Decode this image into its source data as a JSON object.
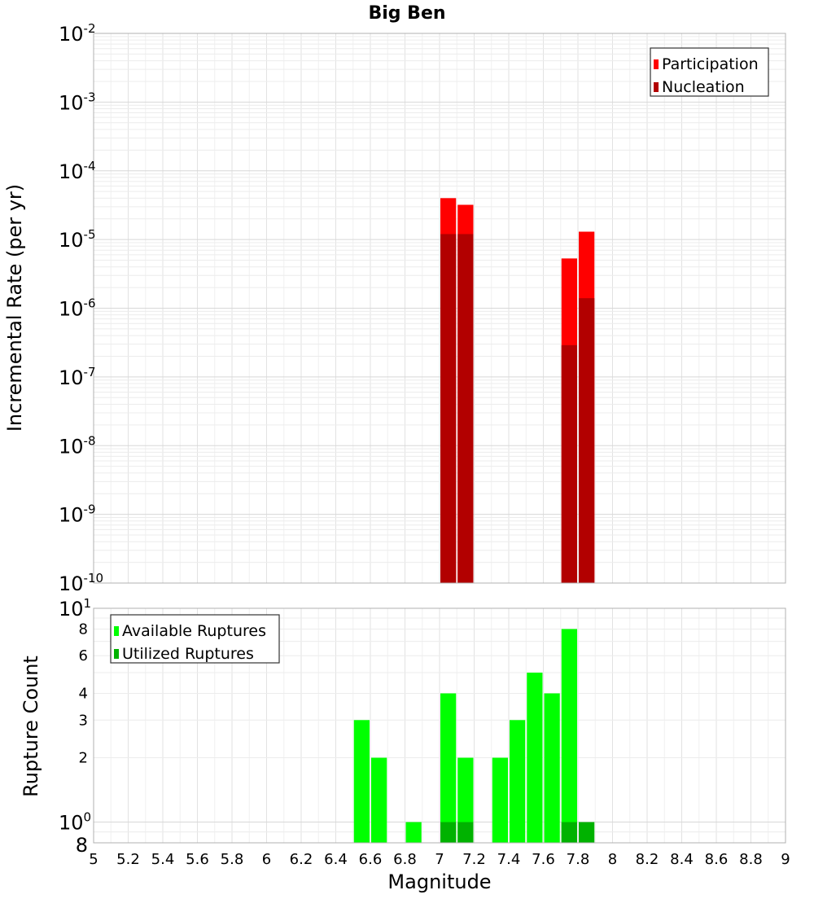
{
  "chart_data": [
    {
      "type": "bar",
      "panel": "rates",
      "title": "Big Ben",
      "ylabel": "Incremental Rate (per yr)",
      "xlim": [
        5,
        9
      ],
      "ylim": [
        1e-10,
        0.01
      ],
      "y_scale": "log",
      "grid": true,
      "legend_placement": "top-right",
      "y_ticks": [
        {
          "base": "10",
          "exp": "-2"
        },
        {
          "base": "10",
          "exp": "-3"
        },
        {
          "base": "10",
          "exp": "-4"
        },
        {
          "base": "10",
          "exp": "-5"
        },
        {
          "base": "10",
          "exp": "-6"
        },
        {
          "base": "10",
          "exp": "-7"
        },
        {
          "base": "10",
          "exp": "-8"
        },
        {
          "base": "10",
          "exp": "-9"
        },
        {
          "base": "10",
          "exp": "-10"
        }
      ],
      "series": [
        {
          "name": "Participation",
          "color": "#ff0000",
          "points": [
            {
              "x": 7.05,
              "y": 4e-05
            },
            {
              "x": 7.15,
              "y": 3.2e-05
            },
            {
              "x": 7.75,
              "y": 5.3e-06
            },
            {
              "x": 7.85,
              "y": 1.3e-05
            }
          ]
        },
        {
          "name": "Nucleation",
          "color": "#b20000",
          "points": [
            {
              "x": 7.05,
              "y": 1.2e-05
            },
            {
              "x": 7.15,
              "y": 1.2e-05
            },
            {
              "x": 7.75,
              "y": 2.9e-07
            },
            {
              "x": 7.85,
              "y": 1.4e-06
            }
          ]
        }
      ]
    },
    {
      "type": "bar",
      "panel": "counts",
      "xlabel": "Magnitude",
      "ylabel": "Rupture Count",
      "xlim": [
        5,
        9
      ],
      "ylim": [
        0.8,
        10
      ],
      "y_scale": "log",
      "grid": true,
      "legend_placement": "top-left",
      "x_ticks": [
        "5",
        "5.2",
        "5.4",
        "5.6",
        "5.8",
        "6",
        "6.2",
        "6.4",
        "6.6",
        "6.8",
        "7",
        "7.2",
        "7.4",
        "7.6",
        "7.8",
        "8",
        "8.2",
        "8.4",
        "8.6",
        "8.8",
        "9"
      ],
      "y_ticks_minor": [
        "8",
        "6",
        "4",
        "3",
        "2"
      ],
      "y_ticks_major": [
        {
          "base": "10",
          "exp": "1"
        },
        {
          "base": "10",
          "exp": "0"
        }
      ],
      "y_tick_bottom": "8",
      "series": [
        {
          "name": "Available Ruptures",
          "color": "#00ff00",
          "points": [
            {
              "x": 6.55,
              "y": 3
            },
            {
              "x": 6.65,
              "y": 2
            },
            {
              "x": 6.85,
              "y": 1
            },
            {
              "x": 7.05,
              "y": 4
            },
            {
              "x": 7.15,
              "y": 2
            },
            {
              "x": 7.35,
              "y": 2
            },
            {
              "x": 7.45,
              "y": 3
            },
            {
              "x": 7.55,
              "y": 5
            },
            {
              "x": 7.65,
              "y": 4
            },
            {
              "x": 7.75,
              "y": 8
            }
          ]
        },
        {
          "name": "Utilized Ruptures",
          "color": "#00b200",
          "points": [
            {
              "x": 7.05,
              "y": 1
            },
            {
              "x": 7.15,
              "y": 1
            },
            {
              "x": 7.75,
              "y": 1
            },
            {
              "x": 7.85,
              "y": 1
            }
          ]
        }
      ]
    }
  ]
}
